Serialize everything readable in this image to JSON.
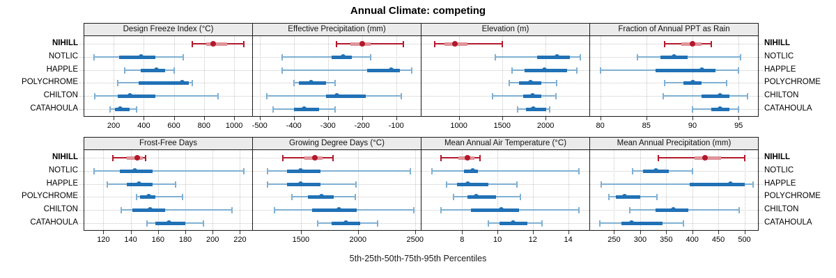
{
  "title": "Annual Climate: competing",
  "caption": "5th-25th-50th-75th-95th Percentiles",
  "highlight_site": "NIHILL",
  "percentile_labels": [
    "5th",
    "25th",
    "50th",
    "75th",
    "95th"
  ],
  "colors": {
    "highlight_line": "#b2182b",
    "highlight_band": "#df949a",
    "highlight_dot": "#b2182b",
    "normal_line": "#7fb0d3",
    "normal_band": "#2171b5",
    "normal_dot": "#2171b5",
    "strip_bg": "#ebebeb",
    "panel_border": "#1a1a1a",
    "grid": "#c6c6c6",
    "tick": "#333333",
    "text": "#000000"
  },
  "sites": [
    "NIHILL",
    "NOTLIC",
    "HAPPLE",
    "POLYCHROME",
    "CHILTON",
    "CATAHOULA"
  ],
  "chart_data": {
    "type": "dot-interval-trellis",
    "layout": "2 rows x 4 columns",
    "interval_semantics": "whisker = 5th-95th percentile, band = 25th-75th percentile, dot = median",
    "grid": "dotted",
    "panels": [
      {
        "title": "Design Freeze Index (°C)",
        "xlim": [
          5,
          1120
        ],
        "ticks": [
          200,
          400,
          600,
          800,
          1000
        ],
        "series": [
          {
            "site": "NIHILL",
            "values": [
              720,
              815,
              860,
              955,
              1065
            ]
          },
          {
            "site": "NOTLIC",
            "values": [
              70,
              235,
              380,
              475,
              660
            ]
          },
          {
            "site": "HAPPLE",
            "values": [
              275,
              380,
              485,
              540,
              600
            ]
          },
          {
            "site": "POLYCHROME",
            "values": [
              225,
              365,
              655,
              700,
              720
            ]
          },
          {
            "site": "CHILTON",
            "values": [
              75,
              225,
              310,
              475,
              895
            ]
          },
          {
            "site": "CATAHOULA",
            "values": [
              175,
              210,
              245,
              305,
              350
            ]
          }
        ]
      },
      {
        "title": "Effective Precipitation (mm)",
        "xlim": [
          -520,
          -28
        ],
        "ticks": [
          -500,
          -400,
          -300,
          -200,
          -100
        ],
        "series": [
          {
            "site": "NIHILL",
            "values": [
              -275,
              -235,
              -200,
              -175,
              -80
            ]
          },
          {
            "site": "NOTLIC",
            "values": [
              -435,
              -290,
              -255,
              -230,
              -175
            ]
          },
          {
            "site": "HAPPLE",
            "values": [
              -435,
              -185,
              -115,
              -90,
              -55
            ]
          },
          {
            "site": "POLYCHROME",
            "values": [
              -400,
              -385,
              -350,
              -305,
              -280
            ]
          },
          {
            "site": "CHILTON",
            "values": [
              -480,
              -305,
              -275,
              -190,
              -85
            ]
          },
          {
            "site": "CATAHOULA",
            "values": [
              -460,
              -400,
              -370,
              -325,
              -280
            ]
          }
        ]
      },
      {
        "title": "Elevation (m)",
        "xlim": [
          570,
          2505
        ],
        "ticks": [
          1000,
          1500,
          2000
        ],
        "series": [
          {
            "site": "NIHILL",
            "values": [
              725,
              835,
              955,
              1100,
              1500
            ]
          },
          {
            "site": "NOTLIC",
            "values": [
              1420,
              1900,
              2130,
              2280,
              2400
            ]
          },
          {
            "site": "HAPPLE",
            "values": [
              1610,
              1755,
              1985,
              2250,
              2360
            ]
          },
          {
            "site": "POLYCHROME",
            "values": [
              1585,
              1695,
              1830,
              1955,
              2125
            ]
          },
          {
            "site": "CHILTON",
            "values": [
              1390,
              1745,
              1850,
              1955,
              2120
            ]
          },
          {
            "site": "CATAHOULA",
            "values": [
              1675,
              1770,
              1855,
              2010,
              2045
            ]
          }
        ]
      },
      {
        "title": "Fraction of Annual PPT as Rain",
        "xlim": [
          78.9,
          97.1
        ],
        "ticks": [
          80,
          85,
          90,
          95
        ],
        "series": [
          {
            "site": "NIHILL",
            "values": [
              87,
              88.8,
              90,
              91,
              92
            ]
          },
          {
            "site": "NOTLIC",
            "values": [
              84,
              86.5,
              88,
              89.5,
              95.2
            ]
          },
          {
            "site": "HAPPLE",
            "values": [
              80,
              86,
              91,
              92.5,
              95
            ]
          },
          {
            "site": "POLYCHROME",
            "values": [
              87,
              89,
              90,
              91,
              93.7
            ]
          },
          {
            "site": "CHILTON",
            "values": [
              86.8,
              91,
              93,
              94,
              96
            ]
          },
          {
            "site": "CATAHOULA",
            "values": [
              90,
              92,
              93,
              94,
              95
            ]
          }
        ]
      },
      {
        "title": "Frost-Free Days",
        "xlim": [
          106,
          229
        ],
        "ticks": [
          120,
          140,
          160,
          180,
          200,
          220
        ],
        "series": [
          {
            "site": "NIHILL",
            "values": [
              127,
              137,
              145,
              149,
              151
            ]
          },
          {
            "site": "NOTLIC",
            "values": [
              113,
              132,
              143,
              156,
              223
            ]
          },
          {
            "site": "HAPPLE",
            "values": [
              123,
              137,
              146,
              156,
              173
            ]
          },
          {
            "site": "POLYCHROME",
            "values": [
              144,
              147,
              153,
              158,
              178
            ]
          },
          {
            "site": "CHILTON",
            "values": [
              133,
              141,
              154,
              165,
              214
            ]
          },
          {
            "site": "CATAHOULA",
            "values": [
              152,
              158,
              168,
              180,
              193
            ]
          }
        ]
      },
      {
        "title": "Growing Degree Days (°C)",
        "xlim": [
          1080,
          2550
        ],
        "ticks": [
          1500,
          2000,
          2500
        ],
        "series": [
          {
            "site": "NIHILL",
            "values": [
              1345,
              1530,
              1625,
              1690,
              1780
            ]
          },
          {
            "site": "NOTLIC",
            "values": [
              1205,
              1380,
              1495,
              1670,
              2460
            ]
          },
          {
            "site": "HAPPLE",
            "values": [
              1210,
              1380,
              1495,
              1670,
              1980
            ]
          },
          {
            "site": "POLYCHROME",
            "values": [
              1420,
              1560,
              1680,
              1790,
              1975
            ]
          },
          {
            "site": "CHILTON",
            "values": [
              1270,
              1600,
              1830,
              1990,
              2490
            ]
          },
          {
            "site": "CATAHOULA",
            "values": [
              1650,
              1770,
              1895,
              2020,
              2170
            ]
          }
        ]
      },
      {
        "title": "Mean Annual Air Temperature (°C)",
        "xlim": [
          5.7,
          15.2
        ],
        "ticks": [
          8,
          10,
          12,
          14
        ],
        "series": [
          {
            "site": "NIHILL",
            "values": [
              6.8,
              7.8,
              8.3,
              8.7,
              9.0
            ]
          },
          {
            "site": "NOTLIC",
            "values": [
              6.3,
              8.1,
              8.6,
              8.9,
              14.6
            ]
          },
          {
            "site": "HAPPLE",
            "values": [
              7.1,
              7.7,
              8.3,
              9.5,
              11.1
            ]
          },
          {
            "site": "POLYCHROME",
            "values": [
              7.5,
              8.3,
              8.8,
              9.9,
              11.3
            ]
          },
          {
            "site": "CHILTON",
            "values": [
              6.8,
              8.5,
              10.2,
              11.2,
              14.6
            ]
          },
          {
            "site": "CATAHOULA",
            "values": [
              9.5,
              10.1,
              10.9,
              11.7,
              12.5
            ]
          }
        ]
      },
      {
        "title": "Mean Annual Precipitation (mm)",
        "xlim": [
          204,
          526
        ],
        "ticks": [
          250,
          300,
          350,
          400,
          450,
          500
        ],
        "series": [
          {
            "site": "NIHILL",
            "values": [
              335,
              405,
              425,
              455,
              500
            ]
          },
          {
            "site": "NOTLIC",
            "values": [
              285,
              305,
              330,
              355,
              400
            ]
          },
          {
            "site": "HAPPLE",
            "values": [
              225,
              395,
              473,
              500,
              517
            ]
          },
          {
            "site": "POLYCHROME",
            "values": [
              240,
              253,
              270,
              300,
              332
            ]
          },
          {
            "site": "CHILTON",
            "values": [
              280,
              330,
              363,
              392,
              490
            ]
          },
          {
            "site": "CATAHOULA",
            "values": [
              223,
              264,
              283,
              343,
              383
            ]
          }
        ]
      }
    ]
  }
}
